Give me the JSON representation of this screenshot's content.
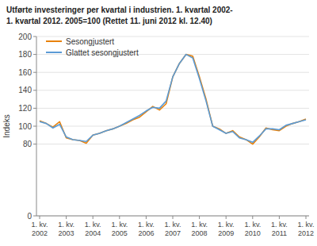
{
  "chart_data": {
    "type": "line",
    "title": "Utførte investeringer per kvartal i industrien. 1. kvartal 2002-",
    "subtitle": "1. kvartal 2012. 2005=100 (Rettet 11. juni 2012 kl. 12.40)",
    "y_label": "Indeks",
    "categories": [
      "1. kv.\n2002",
      null,
      null,
      null,
      "1. kv.\n2003",
      null,
      null,
      null,
      "1. kv.\n2004",
      null,
      null,
      null,
      "1. kv.\n2005",
      null,
      null,
      null,
      "1. kv.\n2006",
      null,
      null,
      null,
      "1. kv.\n2007",
      null,
      null,
      null,
      "1. kv.\n2008",
      null,
      null,
      null,
      "1. kv.\n2009",
      null,
      null,
      null,
      "1. kv.\n2010",
      null,
      null,
      null,
      "1. kv.\n2011",
      null,
      null,
      null,
      "1. kv.\n2012"
    ],
    "series": [
      {
        "name": "Sesongjustert",
        "color": "#E8820C",
        "values": [
          106,
          103,
          99,
          105,
          87,
          85,
          84,
          81,
          90,
          92,
          95,
          97,
          100,
          103,
          107,
          110,
          116,
          122,
          118,
          125,
          155,
          170,
          180,
          178,
          155,
          130,
          100,
          97,
          92,
          95,
          88,
          85,
          80,
          88,
          98,
          96,
          95,
          100,
          103,
          105,
          108
        ]
      },
      {
        "name": "Glattet sesongjustert",
        "color": "#5B9BD5",
        "values": [
          105,
          103,
          98,
          102,
          88,
          85,
          84,
          83,
          90,
          92,
          95,
          97,
          100,
          104,
          108,
          112,
          117,
          121,
          120,
          128,
          155,
          170,
          180,
          176,
          153,
          128,
          100,
          96,
          92,
          94,
          87,
          85,
          82,
          89,
          97,
          97,
          96,
          101,
          103,
          105,
          107
        ]
      }
    ],
    "ylim": [
      0,
      200
    ],
    "yticks": [
      0,
      80,
      100,
      120,
      140,
      160,
      180,
      200
    ],
    "grid": true,
    "legend": "upper left"
  }
}
